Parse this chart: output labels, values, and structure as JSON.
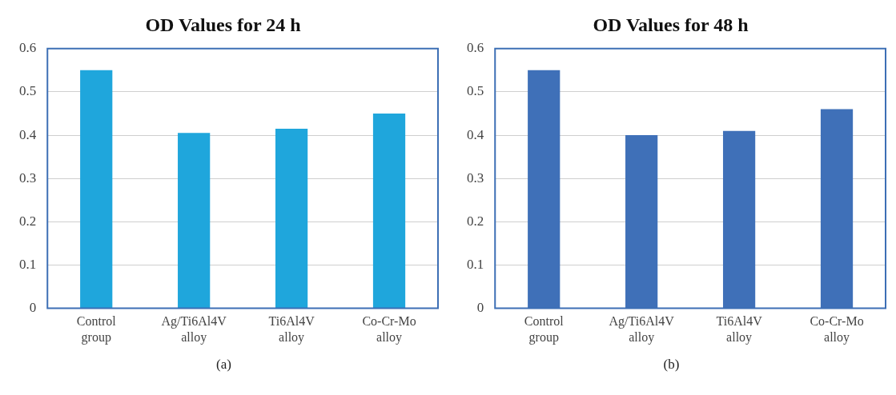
{
  "chart_data": [
    {
      "type": "bar",
      "title": "OD Values for 24 h",
      "categories": [
        "Control group",
        "Ag/Ti6Al4V alloy",
        "Ti6Al4V alloy",
        "Co-Cr-Mo alloy"
      ],
      "values": [
        0.55,
        0.405,
        0.415,
        0.45
      ],
      "color": "#1fa6dc",
      "ylim": [
        0,
        0.6
      ],
      "yticks": [
        0,
        0.1,
        0.2,
        0.3,
        0.4,
        0.5,
        0.6
      ],
      "grid": "y",
      "legend": false,
      "annotations": [
        "(a)"
      ]
    },
    {
      "type": "bar",
      "title": "OD Values for 48 h",
      "categories": [
        "Control group",
        "Ag/Ti6Al4V alloy",
        "Ti6Al4V alloy",
        "Co-Cr-Mo alloy"
      ],
      "values": [
        0.55,
        0.4,
        0.41,
        0.46
      ],
      "color": "#3f70b8",
      "ylim": [
        0,
        0.6
      ],
      "yticks": [
        0,
        0.1,
        0.2,
        0.3,
        0.4,
        0.5,
        0.6
      ],
      "grid": "y",
      "legend": false,
      "annotations": [
        "(b)"
      ]
    }
  ]
}
